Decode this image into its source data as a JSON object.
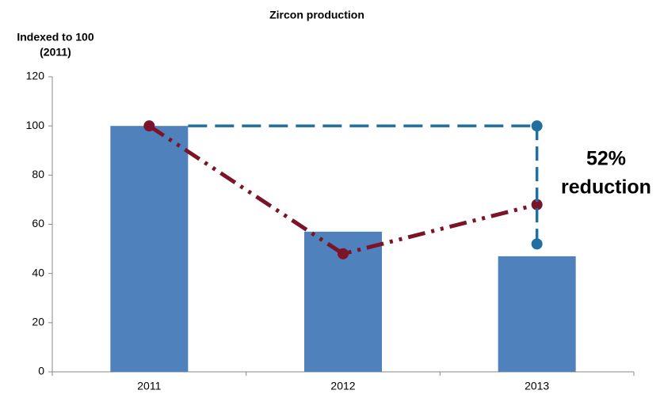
{
  "chart_data": {
    "type": "bar",
    "title": "Zircon production",
    "y_label": [
      "Indexed to 100",
      "(2011)"
    ],
    "categories": [
      "2011",
      "2012",
      "2013"
    ],
    "series": [
      {
        "type": "bar",
        "color": "#4f81bd",
        "values": [
          100,
          57,
          47
        ]
      },
      {
        "type": "line",
        "color": "#7b1428",
        "values": [
          100,
          48,
          68
        ]
      }
    ],
    "annotation": {
      "lines": [
        "52%",
        "reduction"
      ],
      "color": "#1f6fa0",
      "from": 100,
      "to": 52
    },
    "ylim": [
      0,
      120
    ],
    "yticks": [
      0,
      20,
      40,
      60,
      80,
      100,
      120
    ]
  }
}
